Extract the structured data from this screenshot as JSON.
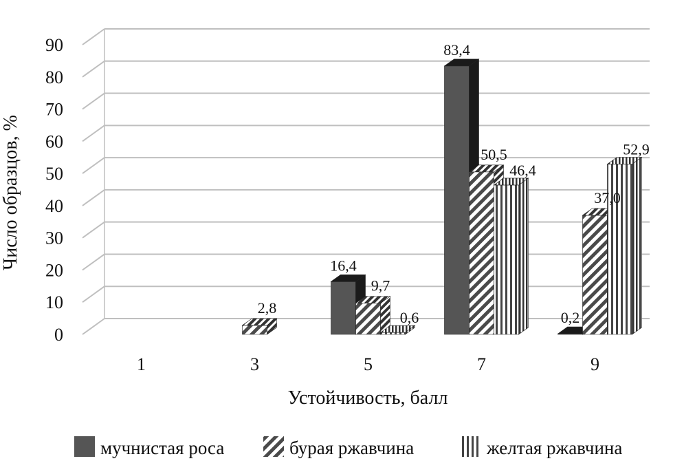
{
  "chart_data": {
    "type": "bar",
    "title": "",
    "xlabel": "Устойчивость, балл",
    "ylabel": "Число образцов, %",
    "ylim": [
      0,
      90
    ],
    "yticks": [
      0,
      10,
      20,
      30,
      40,
      50,
      60,
      70,
      80,
      90
    ],
    "categories": [
      "1",
      "3",
      "5",
      "7",
      "9"
    ],
    "series": [
      {
        "name": "мучнистая роса",
        "values": [
          null,
          null,
          16.4,
          83.4,
          0.2
        ],
        "labels": [
          "",
          "",
          "16,4",
          "83,4",
          "0,2"
        ],
        "pattern": "solid"
      },
      {
        "name": "бурая ржавчина",
        "values": [
          null,
          2.8,
          9.7,
          50.5,
          37.0
        ],
        "labels": [
          "",
          "2,8",
          "9,7",
          "50,5",
          "37,0"
        ],
        "pattern": "diagonal"
      },
      {
        "name": "желтая ржавчина",
        "values": [
          null,
          null,
          0.6,
          46.4,
          52.9
        ],
        "labels": [
          "",
          "",
          "0,6",
          "46,4",
          "52,9"
        ],
        "pattern": "vertical"
      }
    ],
    "grid": true,
    "legend": "bottom",
    "style": "3d-column",
    "colors": {
      "solid_front": "#555555",
      "solid_dark": "#1a1a1a",
      "hatch": "#4a4a4a",
      "grid": "#bfbfbf"
    }
  }
}
